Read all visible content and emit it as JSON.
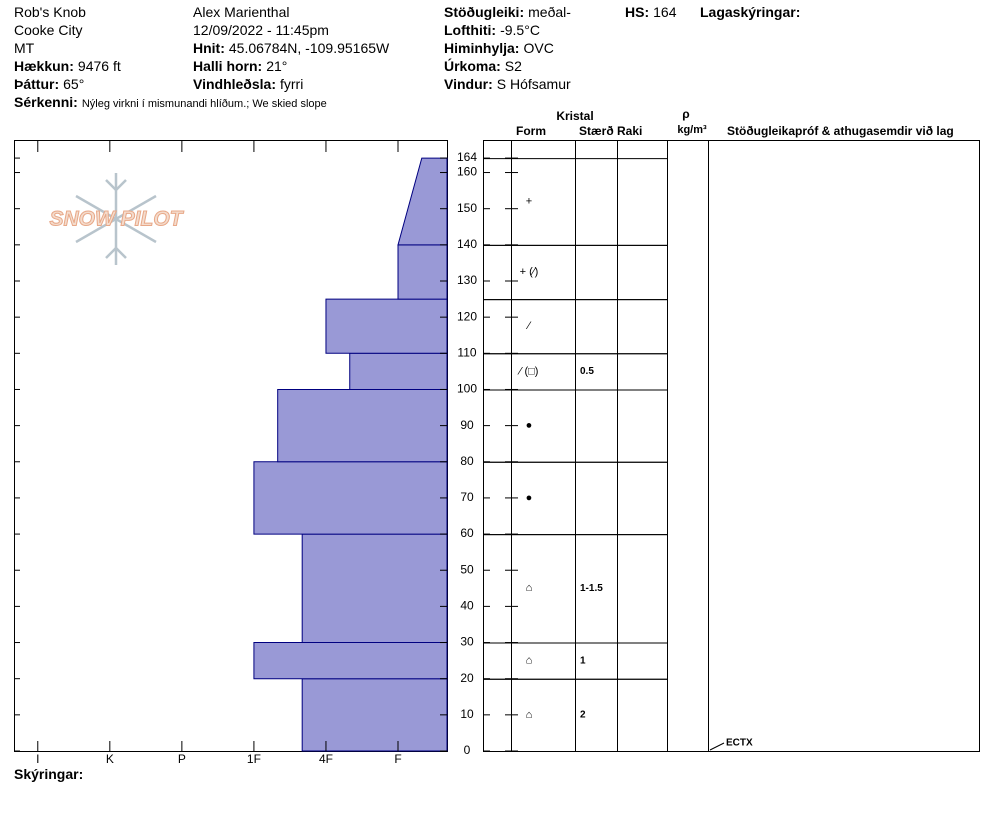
{
  "header": {
    "site": "Rob's Knob",
    "location": "Cooke City",
    "state": "MT",
    "elevation": {
      "label": "Hækkun:",
      "value": "9476 ft"
    },
    "aspect": {
      "label": "Þáttur:",
      "value": "65°"
    },
    "remarks": {
      "label": "Sérkenni:",
      "value": "Nýleg virkni í mismunandi hlíðum.; We skied slope"
    },
    "observer": "Alex Marienthal",
    "datetime": "12/09/2022 - 11:45pm",
    "coords": {
      "label": "Hnit:",
      "value": "45.06784N, -109.95165W"
    },
    "slope": {
      "label": "Halli horn:",
      "value": "21°"
    },
    "wind_loading": {
      "label": "Vindhleðsla:",
      "value": "fyrri"
    },
    "stability": {
      "label": "Stöðugleiki:",
      "value": "meðal-"
    },
    "air_temp": {
      "label": "Lofthiti:",
      "value": "-9.5°C"
    },
    "sky": {
      "label": "Himinhylja:",
      "value": "OVC"
    },
    "precip": {
      "label": "Úrkoma:",
      "value": "S2"
    },
    "wind": {
      "label": "Vindur:",
      "value": "S Hófsamur"
    },
    "hs": {
      "label": "HS:",
      "value": "164"
    },
    "legend_title": "Lagaskýringar:"
  },
  "logo": "SNOW PILOT",
  "footer": "Skýringar:",
  "chart_data": {
    "type": "profile",
    "ylim": [
      0,
      169
    ],
    "yticks": [
      0,
      10,
      20,
      30,
      40,
      50,
      60,
      70,
      80,
      90,
      100,
      110,
      120,
      130,
      140,
      150,
      160,
      164
    ],
    "xlim": [
      6.33,
      0.32
    ],
    "xticks": [
      {
        "value": 6,
        "label": "I"
      },
      {
        "value": 5,
        "label": "K"
      },
      {
        "value": 4,
        "label": "P"
      },
      {
        "value": 3,
        "label": "1F"
      },
      {
        "value": 2,
        "label": "4F"
      },
      {
        "value": 1,
        "label": "F"
      }
    ],
    "color": "#9999d6",
    "edge_color": "#000080",
    "layers": [
      {
        "bottom": 0,
        "top": 20,
        "hardness_bottom": 2.33,
        "hardness_top": 2.33,
        "form": "⌂",
        "size": "2"
      },
      {
        "bottom": 20,
        "top": 30,
        "hardness_bottom": 3,
        "hardness_top": 3,
        "form": "⌂",
        "size": "1"
      },
      {
        "bottom": 30,
        "top": 60,
        "hardness_bottom": 2.33,
        "hardness_top": 2.33,
        "form": "⌂",
        "size": "1-1.5"
      },
      {
        "bottom": 60,
        "top": 80,
        "hardness_bottom": 3,
        "hardness_top": 3,
        "form": "●"
      },
      {
        "bottom": 80,
        "top": 100,
        "hardness_bottom": 2.67,
        "hardness_top": 2.67,
        "form": "●"
      },
      {
        "bottom": 100,
        "top": 110,
        "hardness_bottom": 1.67,
        "hardness_top": 1.67,
        "form": "⁄ (□)",
        "size": "0.5"
      },
      {
        "bottom": 110,
        "top": 125,
        "hardness_bottom": 2,
        "hardness_top": 2,
        "form": "⁄"
      },
      {
        "bottom": 125,
        "top": 140,
        "hardness_bottom": 1,
        "hardness_top": 1,
        "form": "+ (⁄)"
      },
      {
        "bottom": 140,
        "top": 164,
        "hardness_bottom": 1,
        "hardness_top": 0.67,
        "form": "+"
      }
    ]
  },
  "table": {
    "crystal": "Kristal",
    "form": "Form",
    "size": "Stærð",
    "wetness": "Raki",
    "density_symbol": "ρ",
    "density_unit": "kg/m³",
    "comments": "Stöðugleikapróf & athugasemdir við lag",
    "stability_tests": [
      {
        "label": "ECTX",
        "height": 0
      }
    ]
  }
}
